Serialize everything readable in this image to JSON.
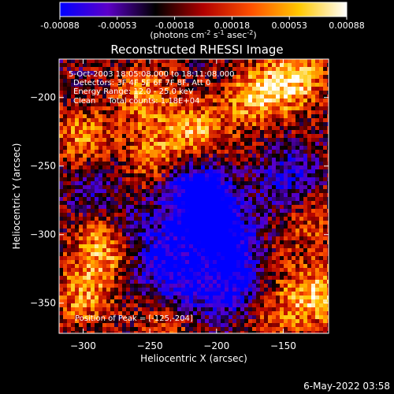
{
  "chart_data": {
    "type": "heatmap",
    "title": "Reconstructed RHESSI Image",
    "xlabel": "Heliocentric X (arcsec)",
    "ylabel": "Heliocentric Y (arcsec)",
    "xlim": [
      -318,
      -116
    ],
    "ylim": [
      -372,
      -172
    ],
    "xticks": [
      -300,
      -250,
      -200,
      -150
    ],
    "yticks": [
      -200,
      -250,
      -300,
      -350
    ],
    "colorbar": {
      "range": [
        -0.00088,
        0.00088
      ],
      "ticks": [
        "-0.00088",
        "-0.00053",
        "-0.00018",
        "0.00018",
        "0.00053",
        "0.00088"
      ],
      "unit_main": "(photons cm",
      "unit_exp1": "-2",
      "unit_mid": " s",
      "unit_exp2": "-1",
      "unit_mid2": " asec",
      "unit_exp3": "-2",
      "unit_end": ")",
      "colors": [
        "#0000ff",
        "#5c00c8",
        "#000000",
        "#b00000",
        "#ff5000",
        "#ffc800",
        "#ffffff"
      ]
    },
    "annotations": {
      "time": "5-Oct-2003 18:05:08.000 to 18:11:08.000",
      "detectors": "Detectors: 3F 4F 5F 6F 7F 8F, Att 0",
      "energy": "Energy Range: 12.0 - 25.0 keV",
      "clean": "Clean     Total counts: 1.18E+04",
      "peak": "Position of Peak = [-125,-204]"
    },
    "grid": false,
    "hotspots": [
      {
        "x": -170,
        "y": -200,
        "value": 0.0008
      },
      {
        "x": -140,
        "y": -185,
        "value": 0.0008
      },
      {
        "x": -255,
        "y": -200,
        "value": 0.0006
      },
      {
        "x": -215,
        "y": -225,
        "value": 0.0007
      },
      {
        "x": -245,
        "y": -245,
        "value": 0.0006
      },
      {
        "x": -300,
        "y": -230,
        "value": 0.0006
      },
      {
        "x": -285,
        "y": -310,
        "value": 0.00075
      },
      {
        "x": -300,
        "y": -345,
        "value": 0.0006
      },
      {
        "x": -185,
        "y": -265,
        "value": 0.0005
      },
      {
        "x": -170,
        "y": -325,
        "value": 0.0005
      },
      {
        "x": -125,
        "y": -345,
        "value": 0.0008
      },
      {
        "x": -235,
        "y": -365,
        "value": 0.0005
      },
      {
        "x": -160,
        "y": -360,
        "value": 0.00045
      },
      {
        "x": -270,
        "y": -280,
        "value": 0.0003
      },
      {
        "x": -130,
        "y": -290,
        "value": 0.0004
      }
    ],
    "coldspots": [
      {
        "x": -210,
        "y": -290,
        "value": -0.0009
      },
      {
        "x": -195,
        "y": -270,
        "value": -0.0009
      },
      {
        "x": -225,
        "y": -260,
        "value": -0.0006
      },
      {
        "x": -240,
        "y": -320,
        "value": -0.0007
      },
      {
        "x": -185,
        "y": -315,
        "value": -0.0009
      },
      {
        "x": -150,
        "y": -260,
        "value": -0.0006
      },
      {
        "x": -220,
        "y": -345,
        "value": -0.0006
      },
      {
        "x": -180,
        "y": -340,
        "value": -0.0007
      },
      {
        "x": -265,
        "y": -290,
        "value": -0.0005
      },
      {
        "x": -290,
        "y": -265,
        "value": -0.0004
      }
    ]
  },
  "footer": {
    "date": "6-May-2022 03:58"
  }
}
